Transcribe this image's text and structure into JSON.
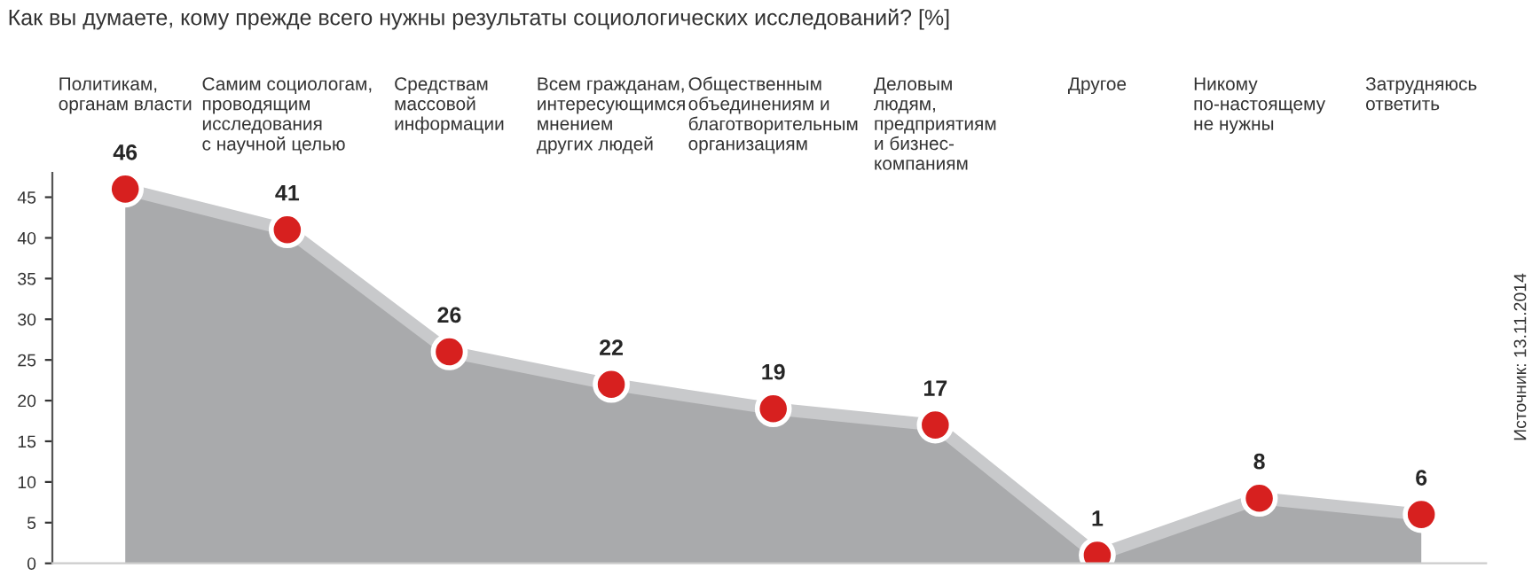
{
  "chart_data": {
    "type": "area",
    "title": "Как вы думаете, кому прежде всего нужны результаты социологических исследований? [%]",
    "categories": [
      "Политикам,\nорганам власти",
      "Самим социологам,\nпроводящим\nисследования\nс научной целью",
      "Средствам\nмассовой\nинформации",
      "Всем гражданам,\nинтересующимся\nмнением\nдругих людей",
      "Общественным\nобъединениям и\nблаготворительным\nорганизациям",
      "Деловым\nлюдям,\nпредприятиям\nи бизнес-\nкомпаниям",
      "Другое",
      "Никому\nпо-настоящему\nне нужны",
      "Затрудняюсь\nответить"
    ],
    "series": [
      {
        "color": "#a9aaac",
        "values": [
          46,
          41,
          26,
          22,
          19,
          17,
          1,
          8,
          6
        ]
      }
    ],
    "data_labels": true,
    "marker": "circle",
    "ylim": [
      0,
      48
    ],
    "yticks": [
      0,
      5,
      10,
      15,
      20,
      25,
      30,
      35,
      40,
      45
    ],
    "grid": false,
    "legend": false,
    "annotations": [
      "Источник: 13.11.2014"
    ]
  }
}
